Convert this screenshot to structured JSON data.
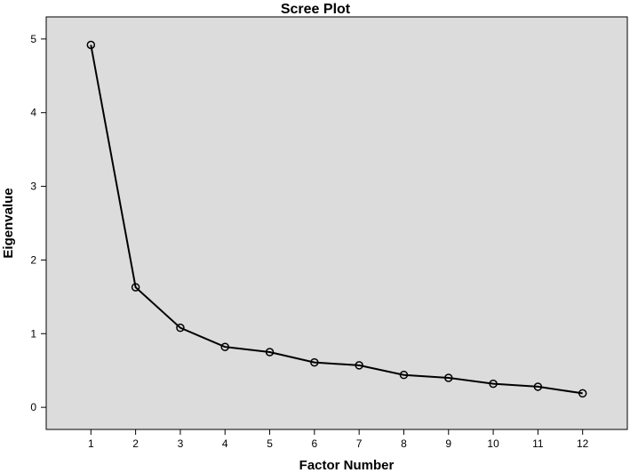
{
  "chart_data": {
    "type": "line",
    "title": "Scree Plot",
    "xlabel": "Factor Number",
    "ylabel": "Eigenvalue",
    "x": [
      1,
      2,
      3,
      4,
      5,
      6,
      7,
      8,
      9,
      10,
      11,
      12
    ],
    "series": [
      {
        "values": [
          4.92,
          1.63,
          1.08,
          0.82,
          0.75,
          0.61,
          0.57,
          0.44,
          0.4,
          0.32,
          0.28,
          0.19
        ]
      }
    ],
    "xticks": [
      "1",
      "2",
      "3",
      "4",
      "5",
      "6",
      "7",
      "8",
      "9",
      "10",
      "11",
      "12"
    ],
    "yticks": [
      "0",
      "1",
      "2",
      "3",
      "4",
      "5"
    ],
    "xlim": [
      0,
      13
    ],
    "ylim": [
      -0.3,
      5.3
    ],
    "grid": false,
    "marker": "open-circle",
    "colors": {
      "plot_background": "#dcdcdc",
      "line": "#000000"
    }
  }
}
